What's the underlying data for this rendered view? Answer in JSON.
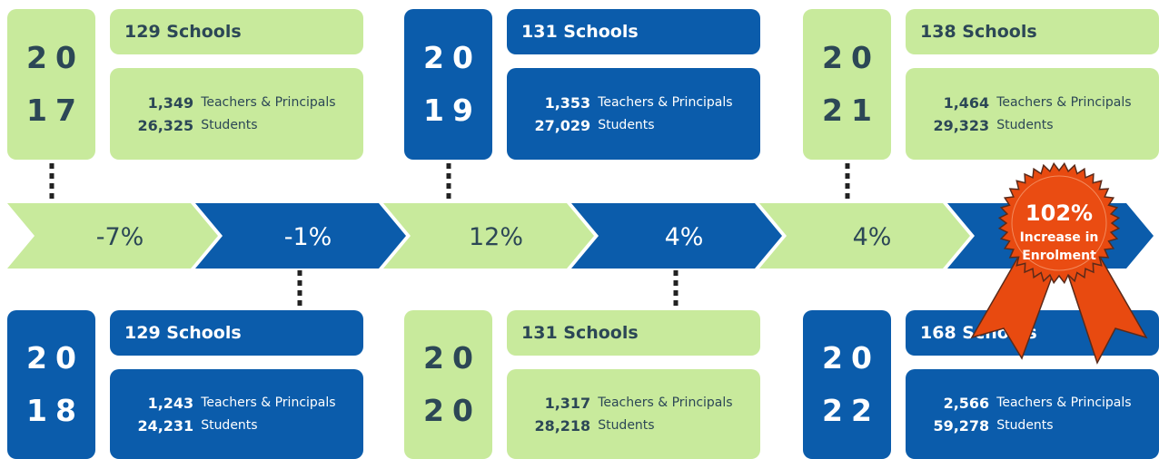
{
  "timeline": [
    {
      "year_top": "20",
      "year_bottom": "17",
      "schools": "129 Schools",
      "teachers": "1,349",
      "teachers_label": "Teachers & Principals",
      "students": "26,325",
      "students_label": "Students"
    },
    {
      "year_top": "20",
      "year_bottom": "18",
      "schools": "129 Schools",
      "teachers": "1,243",
      "teachers_label": "Teachers & Principals",
      "students": "24,231",
      "students_label": "Students"
    },
    {
      "year_top": "20",
      "year_bottom": "19",
      "schools": "131 Schools",
      "teachers": "1,353",
      "teachers_label": "Teachers & Principals",
      "students": "27,029",
      "students_label": "Students"
    },
    {
      "year_top": "20",
      "year_bottom": "20",
      "schools": "131 Schools",
      "teachers": "1,317",
      "teachers_label": "Teachers & Principals",
      "students": "28,218",
      "students_label": "Students"
    },
    {
      "year_top": "20",
      "year_bottom": "21",
      "schools": "138 Schools",
      "teachers": "1,464",
      "teachers_label": "Teachers & Principals",
      "students": "29,323",
      "students_label": "Students"
    },
    {
      "year_top": "20",
      "year_bottom": "22",
      "schools": "168 Schools",
      "teachers": "2,566",
      "teachers_label": "Teachers & Principals",
      "students": "59,278",
      "students_label": "Students"
    }
  ],
  "changes": [
    "-7%",
    "-1%",
    "12%",
    "4%",
    "4%"
  ],
  "badge": {
    "value": "102%",
    "line1": "Increase in",
    "line2": "Enrolment"
  }
}
